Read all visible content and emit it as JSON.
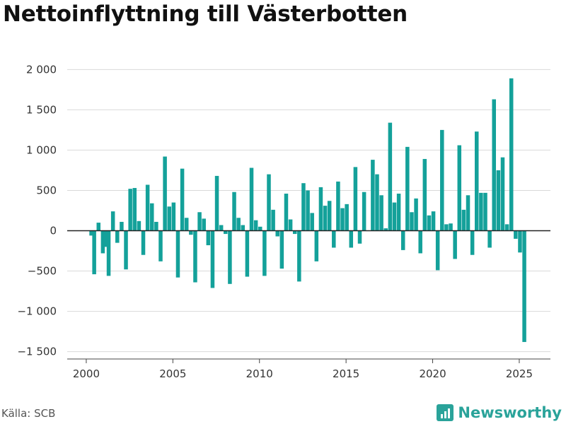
{
  "title": "Nettoinflyttning till Västerbotten",
  "source": "Källa: SCB",
  "brand": {
    "name": "Newsworthy",
    "icon": "newsworthy-logo-icon",
    "color": "#2aa39a"
  },
  "colors": {
    "bar": "#14a19a",
    "grid": "#d9d9d9",
    "zero": "#222222"
  },
  "chart_data": {
    "type": "bar",
    "title": "Nettoinflyttning till Västerbotten",
    "xlabel": "",
    "ylabel": "",
    "ylim": [
      -1600,
      2200
    ],
    "xlim": [
      1998.9,
      2026.8
    ],
    "grid": true,
    "yticks": [
      2000,
      1500,
      1000,
      500,
      0,
      -500,
      -1000,
      -1500
    ],
    "ytick_labels": [
      "2 000",
      "1 500",
      "1 000",
      "500",
      "0",
      "−500",
      "−1 000",
      "−1 500"
    ],
    "xticks": [
      2000,
      2005,
      2010,
      2015,
      2020,
      2025
    ],
    "xtick_labels": [
      "2000",
      "2005",
      "2010",
      "2015",
      "2020",
      "2025"
    ],
    "start": "2000-01",
    "frequency": "monthly",
    "x": [
      "2000-01",
      "2000-02",
      "2000-03",
      "2000-04",
      "2000-05",
      "2000-06",
      "2000-07",
      "2000-08",
      "2000-09",
      "2000-10",
      "2000-11",
      "2000-12",
      "2001-01",
      "2001-02",
      "2001-03",
      "2001-04",
      "2001-05",
      "2001-06",
      "2001-07",
      "2001-08",
      "2001-09",
      "2001-10",
      "2001-11",
      "2001-12",
      "2002-01",
      "2002-02",
      "2002-03",
      "2002-04",
      "2002-05",
      "2002-06",
      "2002-07",
      "2002-08",
      "2002-09",
      "2002-10",
      "2002-11",
      "2002-12",
      "2003-01",
      "2003-02",
      "2003-03",
      "2003-04",
      "2003-05",
      "2003-06",
      "2003-07",
      "2003-08",
      "2003-09",
      "2003-10",
      "2003-11",
      "2003-12",
      "2004-01",
      "2004-02",
      "2004-03",
      "2004-04",
      "2004-05",
      "2004-06",
      "2004-07",
      "2004-08",
      "2004-09",
      "2004-10",
      "2004-11",
      "2004-12",
      "2005-01",
      "2005-02",
      "2005-03",
      "2005-04",
      "2005-05",
      "2005-06",
      "2005-07",
      "2005-08",
      "2005-09",
      "2005-10",
      "2005-11",
      "2005-12",
      "2006-01",
      "2006-02",
      "2006-03",
      "2006-04",
      "2006-05",
      "2006-06",
      "2006-07",
      "2006-08",
      "2006-09",
      "2006-10",
      "2006-11",
      "2006-12",
      "2007-01",
      "2007-02",
      "2007-03",
      "2007-04",
      "2007-05",
      "2007-06",
      "2007-07",
      "2007-08",
      "2007-09",
      "2007-10",
      "2007-11",
      "2007-12",
      "2008-01",
      "2008-02",
      "2008-03",
      "2008-04",
      "2008-05",
      "2008-06",
      "2008-07",
      "2008-08",
      "2008-09",
      "2008-10",
      "2008-11",
      "2008-12",
      "2009-01",
      "2009-02",
      "2009-03",
      "2009-04",
      "2009-05",
      "2009-06",
      "2009-07",
      "2009-08",
      "2009-09",
      "2009-10",
      "2009-11",
      "2009-12",
      "2010-01",
      "2010-02",
      "2010-03",
      "2010-04",
      "2010-05",
      "2010-06",
      "2010-07",
      "2010-08",
      "2010-09",
      "2010-10",
      "2010-11",
      "2010-12",
      "2011-01",
      "2011-02",
      "2011-03",
      "2011-04",
      "2011-05",
      "2011-06",
      "2011-07",
      "2011-08",
      "2011-09",
      "2011-10",
      "2011-11",
      "2011-12",
      "2012-01",
      "2012-02",
      "2012-03",
      "2012-04",
      "2012-05",
      "2012-06",
      "2012-07",
      "2012-08",
      "2012-09",
      "2012-10",
      "2012-11",
      "2012-12",
      "2013-01",
      "2013-02",
      "2013-03",
      "2013-04",
      "2013-05",
      "2013-06",
      "2013-07",
      "2013-08",
      "2013-09",
      "2013-10",
      "2013-11",
      "2013-12",
      "2014-01",
      "2014-02",
      "2014-03",
      "2014-04",
      "2014-05",
      "2014-06",
      "2014-07",
      "2014-08",
      "2014-09",
      "2014-10",
      "2014-11",
      "2014-12",
      "2015-01",
      "2015-02",
      "2015-03",
      "2015-04",
      "2015-05",
      "2015-06",
      "2015-07",
      "2015-08",
      "2015-09",
      "2015-10",
      "2015-11",
      "2015-12",
      "2016-01",
      "2016-02",
      "2016-03",
      "2016-04",
      "2016-05",
      "2016-06",
      "2016-07",
      "2016-08",
      "2016-09",
      "2016-10",
      "2016-11",
      "2016-12",
      "2017-01",
      "2017-02",
      "2017-03",
      "2017-04",
      "2017-05",
      "2017-06",
      "2017-07",
      "2017-08",
      "2017-09",
      "2017-10",
      "2017-11",
      "2017-12",
      "2018-01",
      "2018-02",
      "2018-03",
      "2018-04",
      "2018-05",
      "2018-06",
      "2018-07",
      "2018-08",
      "2018-09",
      "2018-10",
      "2018-11",
      "2018-12",
      "2019-01",
      "2019-02",
      "2019-03",
      "2019-04",
      "2019-05",
      "2019-06",
      "2019-07",
      "2019-08",
      "2019-09",
      "2019-10",
      "2019-11",
      "2019-12",
      "2020-01",
      "2020-02",
      "2020-03",
      "2020-04",
      "2020-05",
      "2020-06",
      "2020-07",
      "2020-08",
      "2020-09",
      "2020-10",
      "2020-11",
      "2020-12",
      "2021-01",
      "2021-02",
      "2021-03",
      "2021-04",
      "2021-05",
      "2021-06",
      "2021-07",
      "2021-08",
      "2021-09",
      "2021-10",
      "2021-11",
      "2021-12",
      "2022-01",
      "2022-02",
      "2022-03",
      "2022-04",
      "2022-05",
      "2022-06",
      "2022-07",
      "2022-08",
      "2022-09",
      "2022-10",
      "2022-11",
      "2022-12",
      "2023-01",
      "2023-02",
      "2023-03",
      "2023-04",
      "2023-05",
      "2023-06",
      "2023-07",
      "2023-08",
      "2023-09",
      "2023-10",
      "2023-11",
      "2023-12",
      "2024-01",
      "2024-02",
      "2024-03",
      "2024-04",
      "2024-05",
      "2024-06",
      "2024-07",
      "2024-08",
      "2024-09",
      "2024-10",
      "2024-11",
      "2024-12",
      "2025-01",
      "2025-02",
      "2025-03",
      "2025-04",
      "2025-05"
    ],
    "series": [
      {
        "values": [
          0,
          0,
          0,
          -60,
          0,
          -540,
          0,
          0,
          100,
          0,
          0,
          -280,
          0,
          -200,
          0,
          -560,
          0,
          0,
          240,
          0,
          0,
          -150,
          0,
          0,
          110,
          0,
          0,
          -480,
          0,
          0,
          520,
          0,
          0,
          530,
          0,
          0,
          120,
          0,
          0,
          -300,
          0,
          0,
          570,
          0,
          0,
          340,
          0,
          0,
          110,
          0,
          0,
          -380,
          0,
          0,
          920,
          0,
          0,
          300,
          0,
          0,
          350,
          0,
          0,
          -580,
          0,
          0,
          770,
          0,
          0,
          160,
          0,
          0,
          -50,
          0,
          0,
          -640,
          0,
          0,
          230,
          0,
          0,
          150,
          0,
          0,
          -180,
          0,
          0,
          -710,
          0,
          0,
          680,
          0,
          0,
          70,
          0,
          0,
          -40,
          0,
          0,
          -660,
          0,
          0,
          480,
          0,
          0,
          160,
          0,
          0,
          70,
          0,
          0,
          -570,
          0,
          0,
          780,
          0,
          0,
          130,
          0,
          0,
          50,
          0,
          0,
          -560,
          0,
          0,
          700,
          0,
          0,
          260,
          0,
          0,
          -70,
          0,
          0,
          -470,
          0,
          0,
          460,
          0,
          0,
          140,
          0,
          0,
          -40,
          0,
          0,
          -630,
          0,
          0,
          590,
          0,
          0,
          500,
          0,
          0,
          220,
          0,
          0,
          -380,
          0,
          0,
          540,
          0,
          0,
          310,
          0,
          0,
          370,
          0,
          0,
          -210,
          0,
          0,
          610,
          0,
          0,
          280,
          0,
          0,
          330,
          0,
          0,
          -210,
          0,
          0,
          790,
          0,
          0,
          -160,
          0,
          0,
          480,
          0,
          0,
          0,
          0,
          0,
          880,
          0,
          0,
          700,
          0,
          0,
          440,
          0,
          0,
          30,
          0,
          0,
          1340,
          0,
          0,
          350,
          0,
          0,
          460,
          0,
          0,
          -240,
          0,
          0,
          1040,
          0,
          0,
          230,
          0,
          0,
          400,
          0,
          0,
          -280,
          0,
          0,
          890,
          0,
          0,
          190,
          0,
          0,
          240,
          0,
          0,
          -490,
          0,
          0,
          1250,
          0,
          0,
          80,
          0,
          0,
          90,
          0,
          0,
          -350,
          0,
          0,
          1060,
          0,
          0,
          260,
          0,
          0,
          440,
          0,
          0,
          -300,
          0,
          0,
          1230,
          0,
          0,
          470,
          0,
          0,
          470,
          0,
          0,
          -210,
          0,
          0,
          1630,
          0,
          0,
          750,
          0,
          0,
          910,
          0,
          0,
          80,
          0,
          0,
          1890,
          0,
          0,
          -100,
          0,
          0,
          -270,
          0,
          0,
          -1380,
          0
        ]
      }
    ]
  }
}
